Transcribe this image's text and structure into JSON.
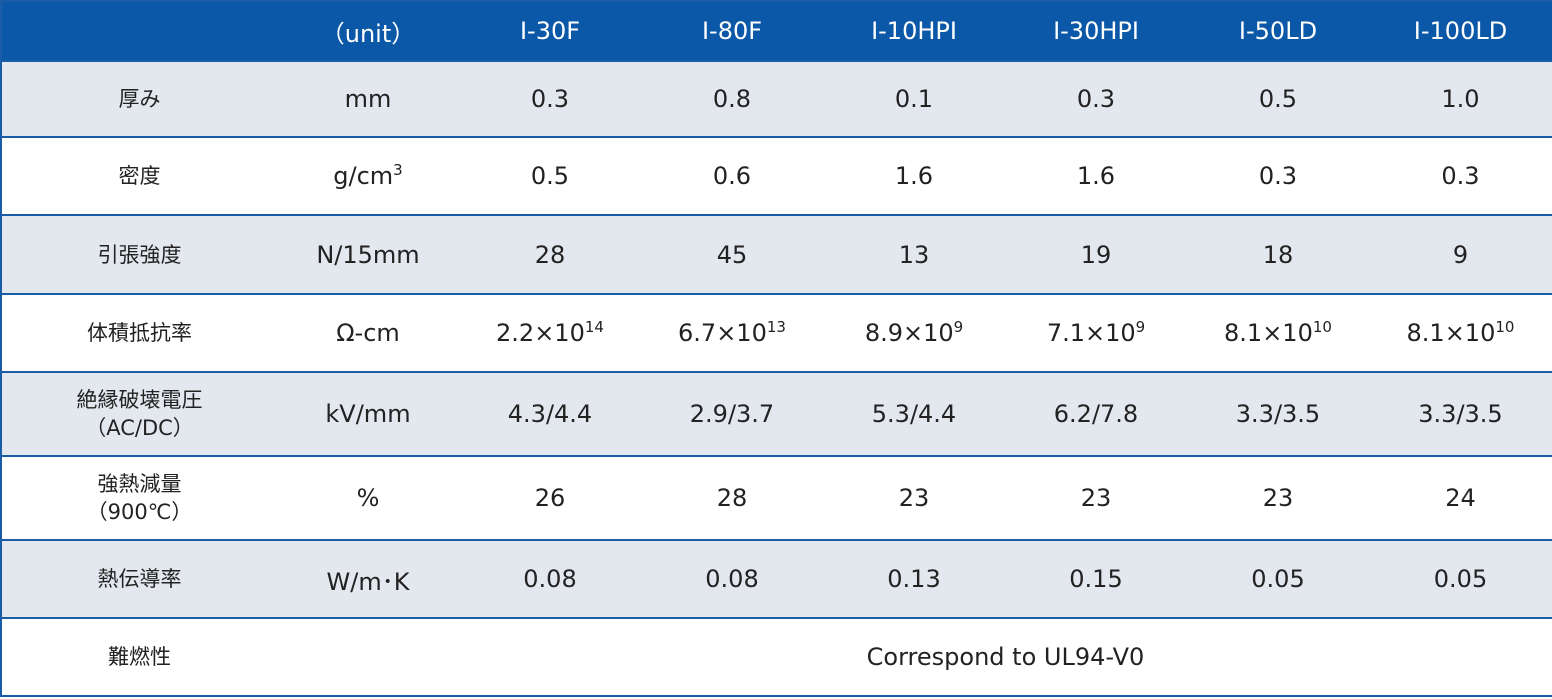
{
  "table": {
    "header": {
      "unit": "（unit）",
      "products": [
        "I-30F",
        "I-80F",
        "I-10HPI",
        "I-30HPI",
        "I-50LD",
        "I-100LD"
      ]
    },
    "rows": [
      {
        "label": [
          "厚み"
        ],
        "unit": "mm",
        "values": [
          "0.3",
          "0.8",
          "0.1",
          "0.3",
          "0.5",
          "1.0"
        ]
      },
      {
        "label": [
          "密度"
        ],
        "unit": {
          "text": "g/cm",
          "sup": "3"
        },
        "values": [
          "0.5",
          "0.6",
          "1.6",
          "1.6",
          "0.3",
          "0.3"
        ]
      },
      {
        "label": [
          "引張強度"
        ],
        "unit": "N/15mm",
        "values": [
          "28",
          "45",
          "13",
          "19",
          "18",
          "9"
        ]
      },
      {
        "label": [
          "体積抵抗率"
        ],
        "unit": "Ω-cm",
        "values": [
          {
            "text": "2.2×10",
            "sup": "14"
          },
          {
            "text": "6.7×10",
            "sup": "13"
          },
          {
            "text": "8.9×10",
            "sup": "9"
          },
          {
            "text": "7.1×10",
            "sup": "9"
          },
          {
            "text": "8.1×10",
            "sup": "10"
          },
          {
            "text": "8.1×10",
            "sup": "10"
          }
        ]
      },
      {
        "label": [
          "絶縁破壊電圧",
          "（AC/DC）"
        ],
        "unit": "kV/mm",
        "values": [
          "4.3/4.4",
          "2.9/3.7",
          "5.3/4.4",
          "6.2/7.8",
          "3.3/3.5",
          "3.3/3.5"
        ]
      },
      {
        "label": [
          "強熱減量",
          "（900℃）"
        ],
        "unit": "%",
        "values": [
          "26",
          "28",
          "23",
          "23",
          "23",
          "24"
        ]
      },
      {
        "label": [
          "熱伝導率"
        ],
        "unit": "W/m･K",
        "values": [
          "0.08",
          "0.08",
          "0.13",
          "0.15",
          "0.05",
          "0.05"
        ]
      },
      {
        "label": [
          "難燃性"
        ],
        "note": "Correspond to UL94-V0"
      }
    ]
  }
}
